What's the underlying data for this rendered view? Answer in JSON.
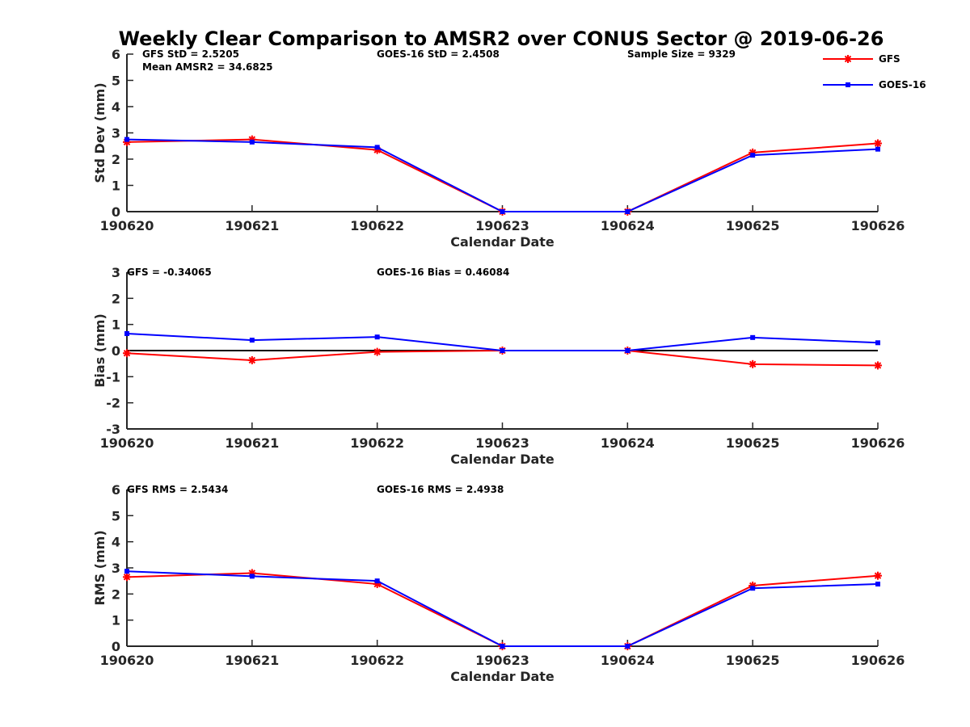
{
  "title": "Weekly Clear Comparison to AMSR2 over CONUS Sector @ 2019-06-26",
  "colors": {
    "gfs": "#ff0000",
    "goes": "#0000ff",
    "axis": "#262626",
    "zero": "#000000"
  },
  "legend": [
    {
      "name": "GFS",
      "marker": "asterisk",
      "color": "#ff0000"
    },
    {
      "name": "GOES-16",
      "marker": "square",
      "color": "#0000ff"
    }
  ],
  "chart_data": [
    {
      "type": "line",
      "categories": [
        "190620",
        "190621",
        "190622",
        "190623",
        "190624",
        "190625",
        "190626"
      ],
      "xlabel": "Calendar Date",
      "ylabel": "Std Dev (mm)",
      "ylim": [
        0,
        6
      ],
      "yticks": [
        "0",
        "1",
        "2",
        "3",
        "4",
        "5",
        "6"
      ],
      "zero_line": false,
      "annotations": {
        "left": "GFS StD = 2.5205",
        "left2": "Mean AMSR2 = 34.6825",
        "middle": "GOES-16 StD = 2.4508",
        "right": "Sample Size = 9329"
      },
      "series": [
        {
          "name": "GFS",
          "values": [
            2.65,
            2.75,
            2.35,
            0,
            0,
            2.25,
            2.6
          ]
        },
        {
          "name": "GOES-16",
          "values": [
            2.75,
            2.65,
            2.45,
            0,
            0,
            2.15,
            2.38
          ]
        }
      ]
    },
    {
      "type": "line",
      "categories": [
        "190620",
        "190621",
        "190622",
        "190623",
        "190624",
        "190625",
        "190626"
      ],
      "xlabel": "Calendar Date",
      "ylabel": "Bias (mm)",
      "ylim": [
        -3,
        3
      ],
      "yticks": [
        "-3",
        "-2",
        "-1",
        "0",
        "1",
        "2",
        "3"
      ],
      "zero_line": true,
      "annotations": {
        "left": "GFS = -0.34065",
        "middle": "GOES-16 Bias  = 0.46084"
      },
      "series": [
        {
          "name": "GFS",
          "values": [
            -0.1,
            -0.37,
            -0.05,
            0,
            0,
            -0.52,
            -0.57
          ]
        },
        {
          "name": "GOES-16",
          "values": [
            0.65,
            0.4,
            0.52,
            0,
            0,
            0.5,
            0.3
          ]
        }
      ]
    },
    {
      "type": "line",
      "categories": [
        "190620",
        "190621",
        "190622",
        "190623",
        "190624",
        "190625",
        "190626"
      ],
      "xlabel": "Calendar Date",
      "ylabel": "RMS (mm)",
      "ylim": [
        0,
        6
      ],
      "yticks": [
        "0",
        "1",
        "2",
        "3",
        "4",
        "5",
        "6"
      ],
      "zero_line": false,
      "annotations": {
        "left": "GFS RMS = 2.5434",
        "middle": "GOES-16 RMS = 2.4938"
      },
      "series": [
        {
          "name": "GFS",
          "values": [
            2.65,
            2.8,
            2.38,
            0,
            0,
            2.32,
            2.7
          ]
        },
        {
          "name": "GOES-16",
          "values": [
            2.87,
            2.68,
            2.5,
            0,
            0,
            2.22,
            2.38
          ]
        }
      ]
    }
  ]
}
